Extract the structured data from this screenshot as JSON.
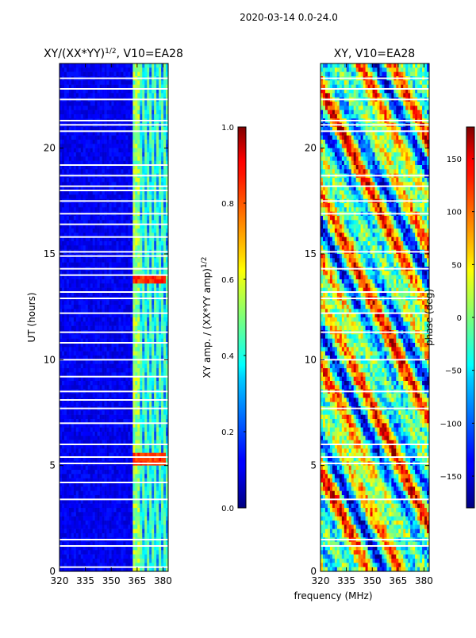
{
  "chart_data": {
    "suptitle": "2020-03-14 0.0-24.0",
    "shared_xlabel": "frequency (MHz)",
    "panels": [
      {
        "type": "heatmap",
        "title_main": "XY/(XX*YY)",
        "title_sup": "1/2",
        "title_tail": ", V10=EA28",
        "xlabel": "",
        "ylabel": "UT (hours)",
        "xlim": [
          320,
          383
        ],
        "ylim": [
          0,
          24
        ],
        "xticks": [
          "320",
          "335",
          "350",
          "365",
          "380"
        ],
        "xtick_values": [
          320,
          335,
          350,
          365,
          380
        ],
        "yticks": [
          "0",
          "5",
          "10",
          "15",
          "20"
        ],
        "ytick_values": [
          0,
          5,
          10,
          15,
          20
        ],
        "colormap": "jet",
        "colorbar": {
          "label_main": "XY amp. / (XX*YY amp)",
          "label_sup": "1/2",
          "range": [
            0.0,
            1.0
          ],
          "ticks": [
            "0.0",
            "0.2",
            "0.4",
            "0.6",
            "0.8",
            "1.0"
          ],
          "tick_values": [
            0.0,
            0.2,
            0.4,
            0.6,
            0.8,
            1.0
          ]
        },
        "flagged_bands_hours": [
          0.2,
          1.2,
          1.5,
          3.4,
          4.2,
          5.1,
          5.4,
          6.0,
          7.0,
          7.7,
          8.1,
          8.5,
          9.2,
          10.0,
          10.8,
          11.3,
          12.2,
          12.9,
          13.2,
          14.0,
          14.3,
          14.9,
          15.1,
          15.8,
          16.4,
          16.9,
          17.5,
          18.0,
          18.2,
          18.7,
          19.2,
          20.8,
          21.1,
          21.3,
          22.3,
          22.8,
          23.3
        ]
      },
      {
        "type": "heatmap",
        "title_main": "XY, V10=EA28",
        "title_sup": "",
        "title_tail": "",
        "xlabel": "frequency (MHz)",
        "ylabel": "",
        "xlim": [
          320,
          383
        ],
        "ylim": [
          0,
          24
        ],
        "xticks": [
          "320",
          "335",
          "350",
          "365",
          "380"
        ],
        "xtick_values": [
          320,
          335,
          350,
          365,
          380
        ],
        "yticks": [
          "0",
          "5",
          "10",
          "15",
          "20"
        ],
        "ytick_values": [
          0,
          5,
          10,
          15,
          20
        ],
        "colormap": "jet",
        "colorbar": {
          "label_main": "phase (deg)",
          "label_sup": "",
          "range": [
            -180,
            180
          ],
          "ticks": [
            "−150",
            "−100",
            "−50",
            "0",
            "50",
            "100",
            "150"
          ],
          "tick_values": [
            -150,
            -100,
            -50,
            0,
            50,
            100,
            150
          ]
        },
        "flagged_bands_hours": [
          1.2,
          1.5,
          3.4,
          5.1,
          5.4,
          6.0,
          7.7,
          8.5,
          10.0,
          11.3,
          12.2,
          12.9,
          13.2,
          14.3,
          15.1,
          16.9,
          17.5,
          18.2,
          18.7,
          20.8,
          21.1,
          21.3,
          22.3,
          22.8,
          23.3
        ]
      }
    ]
  }
}
